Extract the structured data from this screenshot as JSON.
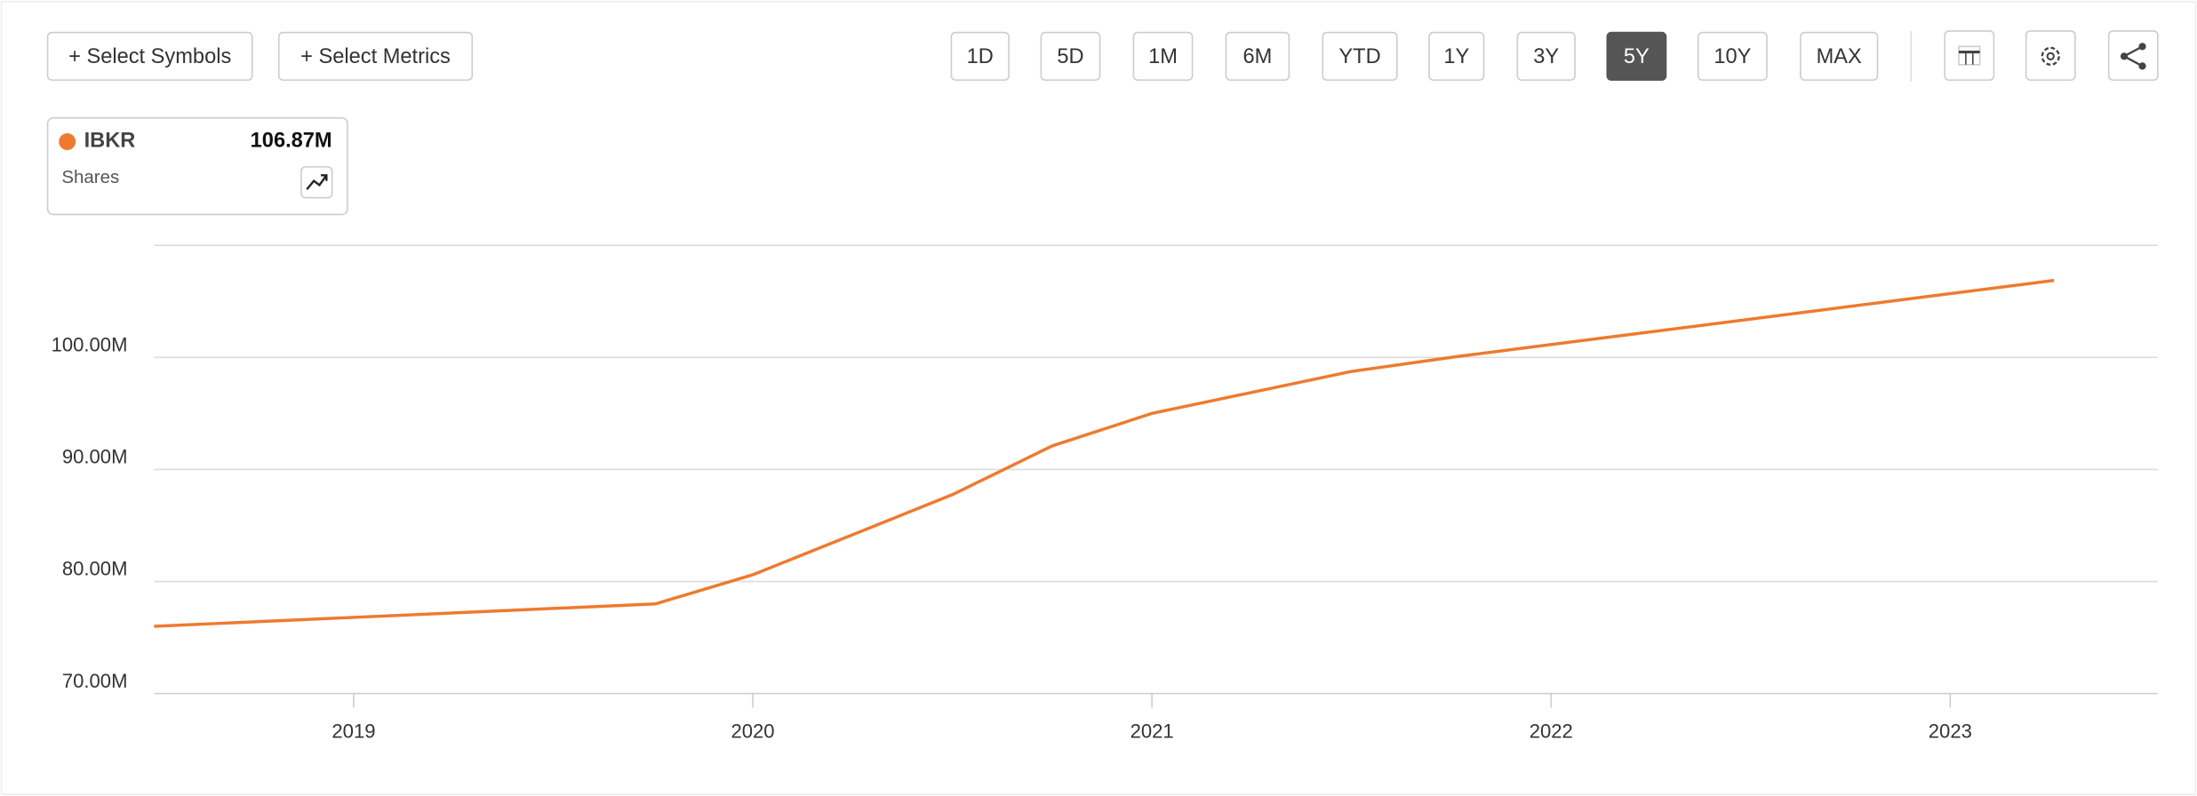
{
  "toolbar": {
    "select_symbols": "+ Select Symbols",
    "select_metrics": "+ Select Metrics",
    "ranges": [
      "1D",
      "5D",
      "1M",
      "6M",
      "YTD",
      "1Y",
      "3Y",
      "5Y",
      "10Y",
      "MAX"
    ],
    "active_range": "5Y"
  },
  "legend": {
    "symbol": "IBKR",
    "value": "106.87M",
    "metric": "Shares"
  },
  "chart_data": {
    "type": "line",
    "x": [
      2018.5,
      2019.756,
      2020.0,
      2020.5,
      2020.75,
      2021.0,
      2021.5,
      2021.77,
      2023.26
    ],
    "series": [
      {
        "name": "IBKR",
        "color": "#ee7a2f",
        "values": [
          76.0,
          78.0,
          80.6,
          87.75,
          92.1,
          95.0,
          98.75,
          100.1,
          106.87
        ]
      }
    ],
    "xlim": [
      2018.5,
      2023.52
    ],
    "xticks": [
      2019,
      2020,
      2021,
      2022,
      2023
    ],
    "ylim": [
      70,
      110
    ],
    "yticks": [
      {
        "value": 70,
        "label": "70.00M"
      },
      {
        "value": 80,
        "label": "80.00M"
      },
      {
        "value": 90,
        "label": "90.00M"
      },
      {
        "value": 100,
        "label": "100.00M"
      }
    ],
    "grid": true
  }
}
